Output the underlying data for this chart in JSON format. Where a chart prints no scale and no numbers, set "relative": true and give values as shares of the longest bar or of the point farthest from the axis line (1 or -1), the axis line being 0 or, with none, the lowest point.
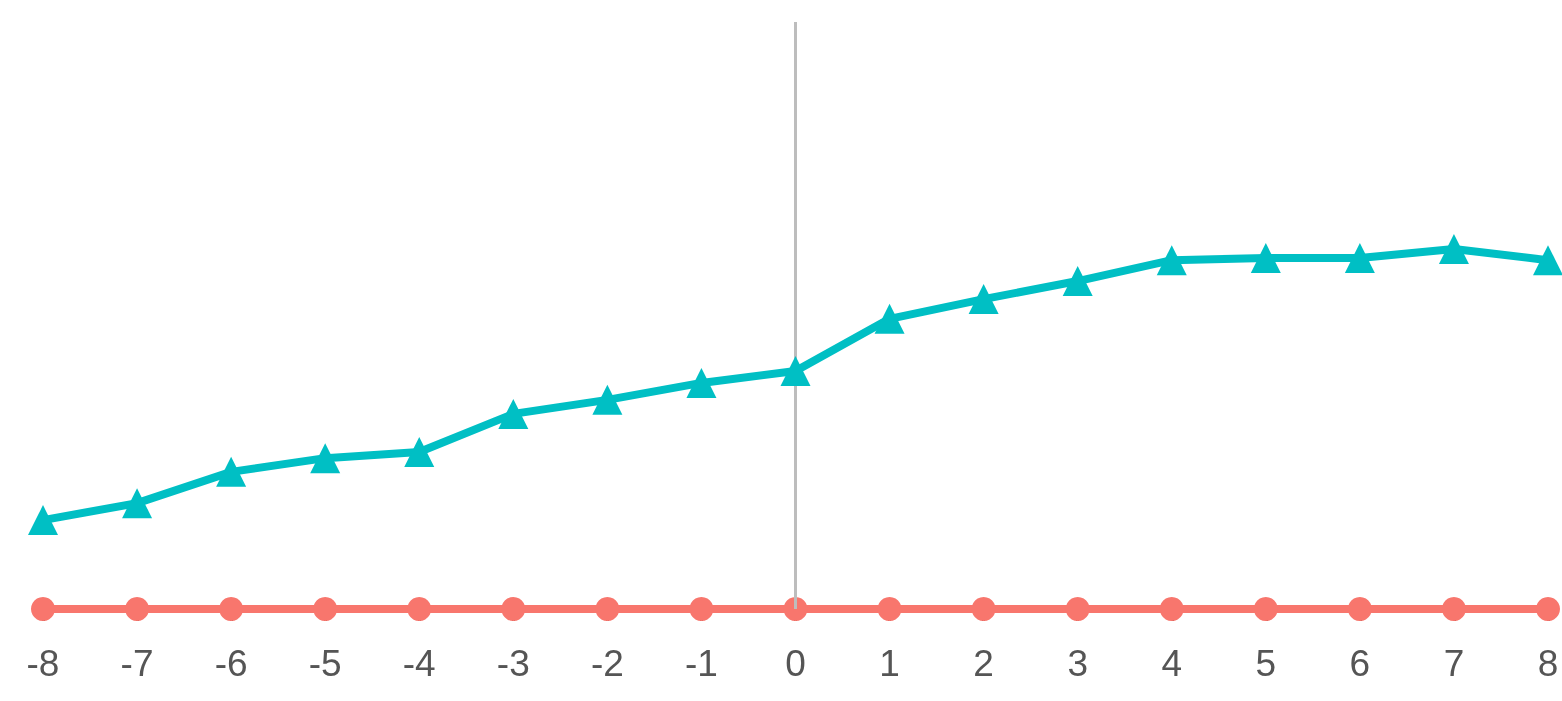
{
  "chart_data": {
    "type": "line",
    "relative": true,
    "x": [
      -8,
      -7,
      -6,
      -5,
      -4,
      -3,
      -2,
      -1,
      0,
      1,
      2,
      3,
      4,
      5,
      6,
      7,
      8
    ],
    "xlim": [
      -8,
      8
    ],
    "xticks": [
      -8,
      -7,
      -6,
      -5,
      -4,
      -3,
      -2,
      -1,
      0,
      1,
      2,
      3,
      4,
      5,
      6,
      7,
      8
    ],
    "series": [
      {
        "color": "#00bfc4",
        "marker": "triangle",
        "values": [
          0.247,
          0.294,
          0.381,
          0.419,
          0.436,
          0.542,
          0.581,
          0.628,
          0.661,
          0.806,
          0.861,
          0.911,
          0.969,
          0.975,
          0.975,
          1,
          0.969
        ]
      },
      {
        "color": "#f8766d",
        "marker": "circle",
        "values": [
          0,
          0,
          0,
          0,
          0,
          0,
          0,
          0,
          0,
          0,
          0,
          0,
          0,
          0,
          0,
          0,
          0
        ]
      }
    ],
    "ref_lines": [
      {
        "axis": "x",
        "value": 0,
        "color": "#bdbdbd"
      }
    ]
  }
}
